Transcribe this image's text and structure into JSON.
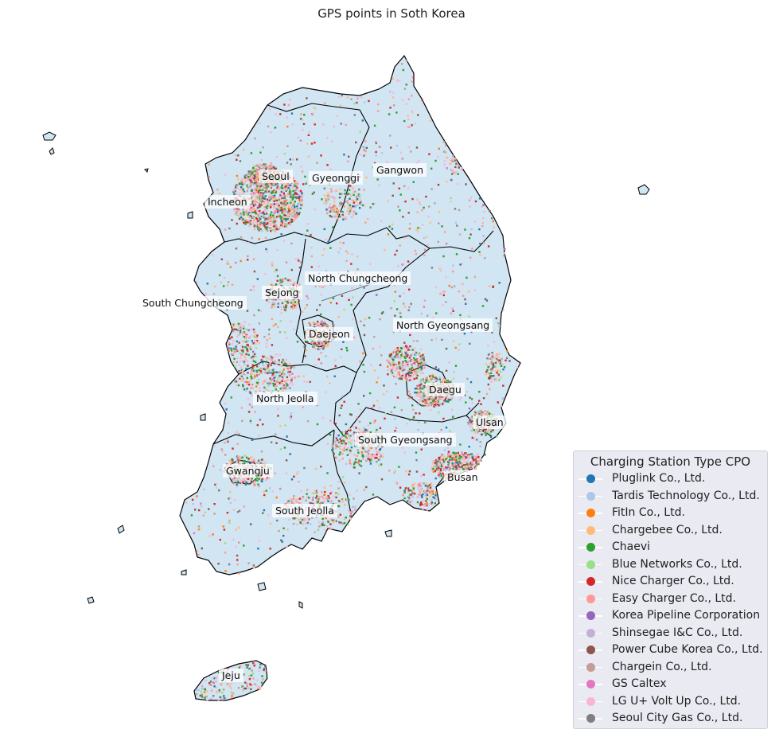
{
  "title": "GPS points in Soth Korea",
  "map": {
    "land_color": "#d1e5f3",
    "border_color": "#000000",
    "regions": [
      {
        "key": "seoul",
        "name": "Seoul"
      },
      {
        "key": "gyeonggi",
        "name": "Gyeonggi"
      },
      {
        "key": "gangwon",
        "name": "Gangwon"
      },
      {
        "key": "incheon",
        "name": "Incheon"
      },
      {
        "key": "north_chungcheong",
        "name": "North Chungcheong"
      },
      {
        "key": "sejong",
        "name": "Sejong"
      },
      {
        "key": "south_chungcheong",
        "name": "South Chungcheong"
      },
      {
        "key": "daejeon",
        "name": "Daejeon"
      },
      {
        "key": "north_gyeongsang",
        "name": "North Gyeongsang"
      },
      {
        "key": "north_jeolla",
        "name": "North Jeolla"
      },
      {
        "key": "daegu",
        "name": "Daegu"
      },
      {
        "key": "ulsan",
        "name": "Ulsan"
      },
      {
        "key": "south_gyeongsang",
        "name": "South Gyeongsang"
      },
      {
        "key": "gwangju",
        "name": "Gwangju"
      },
      {
        "key": "busan",
        "name": "Busan"
      },
      {
        "key": "south_jeolla",
        "name": "South Jeolla"
      },
      {
        "key": "jeju",
        "name": "Jeju"
      }
    ]
  },
  "legend": {
    "title": "Charging Station Type CPO",
    "items": [
      {
        "label": "Pluglink Co., Ltd.",
        "color": "#1f77b4"
      },
      {
        "label": "Tardis Technology Co., Ltd.",
        "color": "#aec7e8"
      },
      {
        "label": "FitIn Co., Ltd.",
        "color": "#ff7f0e"
      },
      {
        "label": "Chargebee Co., Ltd.",
        "color": "#ffbb78"
      },
      {
        "label": "Chaevi",
        "color": "#2ca02c"
      },
      {
        "label": "Blue Networks Co., Ltd.",
        "color": "#98df8a"
      },
      {
        "label": "Nice Charger Co., Ltd.",
        "color": "#d62728"
      },
      {
        "label": "Easy Charger Co., Ltd.",
        "color": "#ff9896"
      },
      {
        "label": "Korea Pipeline Corporation",
        "color": "#9467bd"
      },
      {
        "label": "Shinsegae I&C Co., Ltd.",
        "color": "#c5b0d5"
      },
      {
        "label": "Power Cube Korea Co., Ltd.",
        "color": "#8c564b"
      },
      {
        "label": "Chargein Co., Ltd.",
        "color": "#c49c94"
      },
      {
        "label": "GS Caltex",
        "color": "#e377c2"
      },
      {
        "label": "LG U+ Volt Up Co., Ltd.",
        "color": "#f7b6d2"
      },
      {
        "label": "Seoul City Gas Co., Ltd.",
        "color": "#7f7f7f"
      }
    ]
  }
}
